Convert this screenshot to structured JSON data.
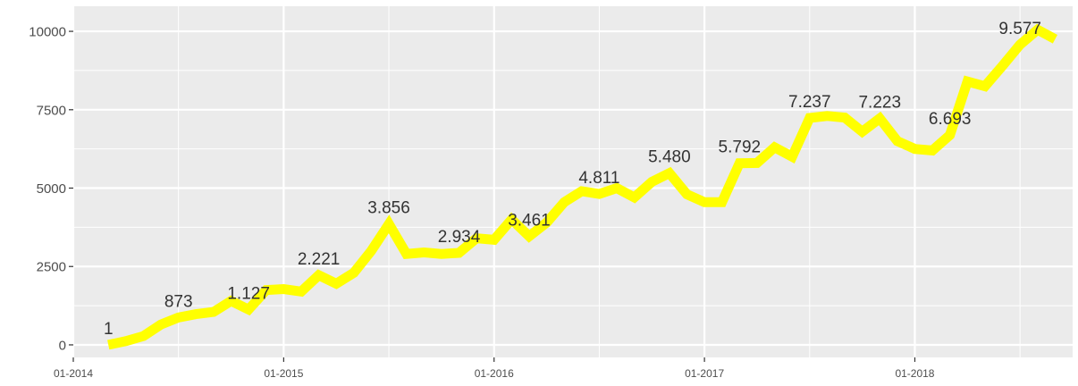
{
  "chart_data": {
    "type": "line",
    "title": "",
    "xlabel": "",
    "ylabel": "",
    "xlim": [
      "2014-01",
      "2018-10"
    ],
    "ylim": [
      -400,
      10800
    ],
    "grid": true,
    "legend": "none",
    "series": [
      {
        "color": "#ffff00",
        "points": [
          [
            "2014-03",
            1
          ],
          [
            "2014-04",
            120
          ],
          [
            "2014-05",
            280
          ],
          [
            "2014-06",
            650
          ],
          [
            "2014-07",
            873
          ],
          [
            "2014-08",
            980
          ],
          [
            "2014-09",
            1050
          ],
          [
            "2014-10",
            1400
          ],
          [
            "2014-11",
            1127
          ],
          [
            "2014-12",
            1750
          ],
          [
            "2015-01",
            1780
          ],
          [
            "2015-02",
            1700
          ],
          [
            "2015-03",
            2221
          ],
          [
            "2015-04",
            1950
          ],
          [
            "2015-05",
            2300
          ],
          [
            "2015-06",
            3000
          ],
          [
            "2015-07",
            3856
          ],
          [
            "2015-08",
            2900
          ],
          [
            "2015-09",
            2950
          ],
          [
            "2015-10",
            2900
          ],
          [
            "2015-11",
            2934
          ],
          [
            "2015-12",
            3400
          ],
          [
            "2016-01",
            3350
          ],
          [
            "2016-02",
            4000
          ],
          [
            "2016-03",
            3461
          ],
          [
            "2016-04",
            3900
          ],
          [
            "2016-05",
            4550
          ],
          [
            "2016-06",
            4900
          ],
          [
            "2016-07",
            4811
          ],
          [
            "2016-08",
            5000
          ],
          [
            "2016-09",
            4700
          ],
          [
            "2016-10",
            5200
          ],
          [
            "2016-11",
            5480
          ],
          [
            "2016-12",
            4800
          ],
          [
            "2017-01",
            4550
          ],
          [
            "2017-02",
            4550
          ],
          [
            "2017-03",
            5792
          ],
          [
            "2017-04",
            5800
          ],
          [
            "2017-05",
            6300
          ],
          [
            "2017-06",
            6000
          ],
          [
            "2017-07",
            7237
          ],
          [
            "2017-08",
            7300
          ],
          [
            "2017-09",
            7250
          ],
          [
            "2017-10",
            6800
          ],
          [
            "2017-11",
            7223
          ],
          [
            "2017-12",
            6500
          ],
          [
            "2018-01",
            6250
          ],
          [
            "2018-02",
            6200
          ],
          [
            "2018-03",
            6693
          ],
          [
            "2018-04",
            8400
          ],
          [
            "2018-05",
            8250
          ],
          [
            "2018-06",
            8900
          ],
          [
            "2018-07",
            9577
          ],
          [
            "2018-08",
            10050
          ],
          [
            "2018-09",
            9750
          ]
        ]
      }
    ],
    "data_labels": [
      {
        "x": "2014-03",
        "y": 1,
        "text": "1"
      },
      {
        "x": "2014-07",
        "y": 873,
        "text": "873"
      },
      {
        "x": "2014-11",
        "y": 1127,
        "text": "1.127"
      },
      {
        "x": "2015-03",
        "y": 2221,
        "text": "2.221"
      },
      {
        "x": "2015-07",
        "y": 3856,
        "text": "3.856"
      },
      {
        "x": "2015-11",
        "y": 2934,
        "text": "2.934"
      },
      {
        "x": "2016-03",
        "y": 3461,
        "text": "3.461"
      },
      {
        "x": "2016-07",
        "y": 4811,
        "text": "4.811"
      },
      {
        "x": "2016-11",
        "y": 5480,
        "text": "5.480"
      },
      {
        "x": "2017-03",
        "y": 5792,
        "text": "5.792"
      },
      {
        "x": "2017-07",
        "y": 7237,
        "text": "7.237"
      },
      {
        "x": "2017-11",
        "y": 7223,
        "text": "7.223"
      },
      {
        "x": "2018-03",
        "y": 6693,
        "text": "6.693"
      },
      {
        "x": "2018-07",
        "y": 9577,
        "text": "9.577"
      }
    ],
    "y_ticks": [
      {
        "value": 0,
        "label": "0"
      },
      {
        "value": 2500,
        "label": "2500"
      },
      {
        "value": 5000,
        "label": "5000"
      },
      {
        "value": 7500,
        "label": "7500"
      },
      {
        "value": 10000,
        "label": "10000"
      }
    ],
    "x_ticks": [
      {
        "value": "2014-01",
        "label": "01-2014"
      },
      {
        "value": "2015-01",
        "label": "01-2015"
      },
      {
        "value": "2016-01",
        "label": "01-2016"
      },
      {
        "value": "2017-01",
        "label": "01-2017"
      },
      {
        "value": "2018-01",
        "label": "01-2018"
      }
    ],
    "colors": {
      "panel": "#ebebeb",
      "grid_major": "#ffffff",
      "line": "#ffff00",
      "axis_tick": "#333333"
    }
  }
}
